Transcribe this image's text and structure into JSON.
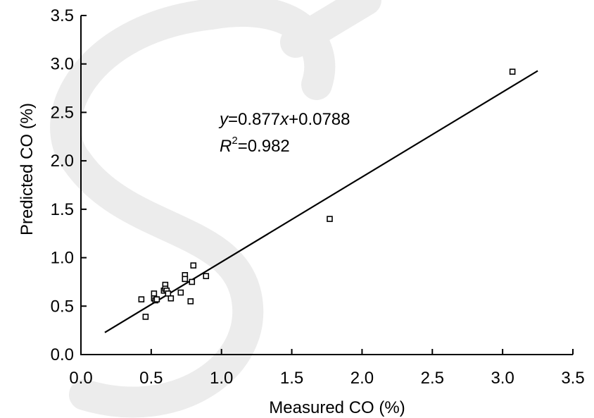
{
  "chart_data": {
    "type": "scatter",
    "xlabel": "Measured CO (%)",
    "ylabel": "Predicted CO (%)",
    "xlim": [
      0.0,
      3.5
    ],
    "ylim": [
      0.0,
      3.5
    ],
    "xticks": [
      "0.0",
      "0.5",
      "1.0",
      "1.5",
      "2.0",
      "2.5",
      "3.0",
      "3.5"
    ],
    "yticks": [
      "0.0",
      "0.5",
      "1.0",
      "1.5",
      "2.0",
      "2.5",
      "3.0",
      "3.5"
    ],
    "grid": false,
    "points": [
      {
        "x": 0.43,
        "y": 0.57
      },
      {
        "x": 0.46,
        "y": 0.39
      },
      {
        "x": 0.52,
        "y": 0.63
      },
      {
        "x": 0.52,
        "y": 0.58
      },
      {
        "x": 0.53,
        "y": 0.56
      },
      {
        "x": 0.54,
        "y": 0.57
      },
      {
        "x": 0.59,
        "y": 0.66
      },
      {
        "x": 0.6,
        "y": 0.72
      },
      {
        "x": 0.6,
        "y": 0.68
      },
      {
        "x": 0.61,
        "y": 0.66
      },
      {
        "x": 0.62,
        "y": 0.63
      },
      {
        "x": 0.64,
        "y": 0.58
      },
      {
        "x": 0.71,
        "y": 0.64
      },
      {
        "x": 0.74,
        "y": 0.82
      },
      {
        "x": 0.74,
        "y": 0.78
      },
      {
        "x": 0.78,
        "y": 0.55
      },
      {
        "x": 0.79,
        "y": 0.75
      },
      {
        "x": 0.8,
        "y": 0.92
      },
      {
        "x": 0.89,
        "y": 0.81
      },
      {
        "x": 1.77,
        "y": 1.4
      },
      {
        "x": 3.07,
        "y": 2.92
      }
    ],
    "fit_line": {
      "slope": 0.877,
      "intercept": 0.0788,
      "x_range": [
        0.17,
        3.25
      ]
    },
    "equation": {
      "y_var": "y",
      "eq_rest": "=0.877",
      "x_var": "x",
      "eq_tail": "+0.0788",
      "r_var": "R",
      "r_sup": "2",
      "r_rest": "=0.982"
    }
  }
}
